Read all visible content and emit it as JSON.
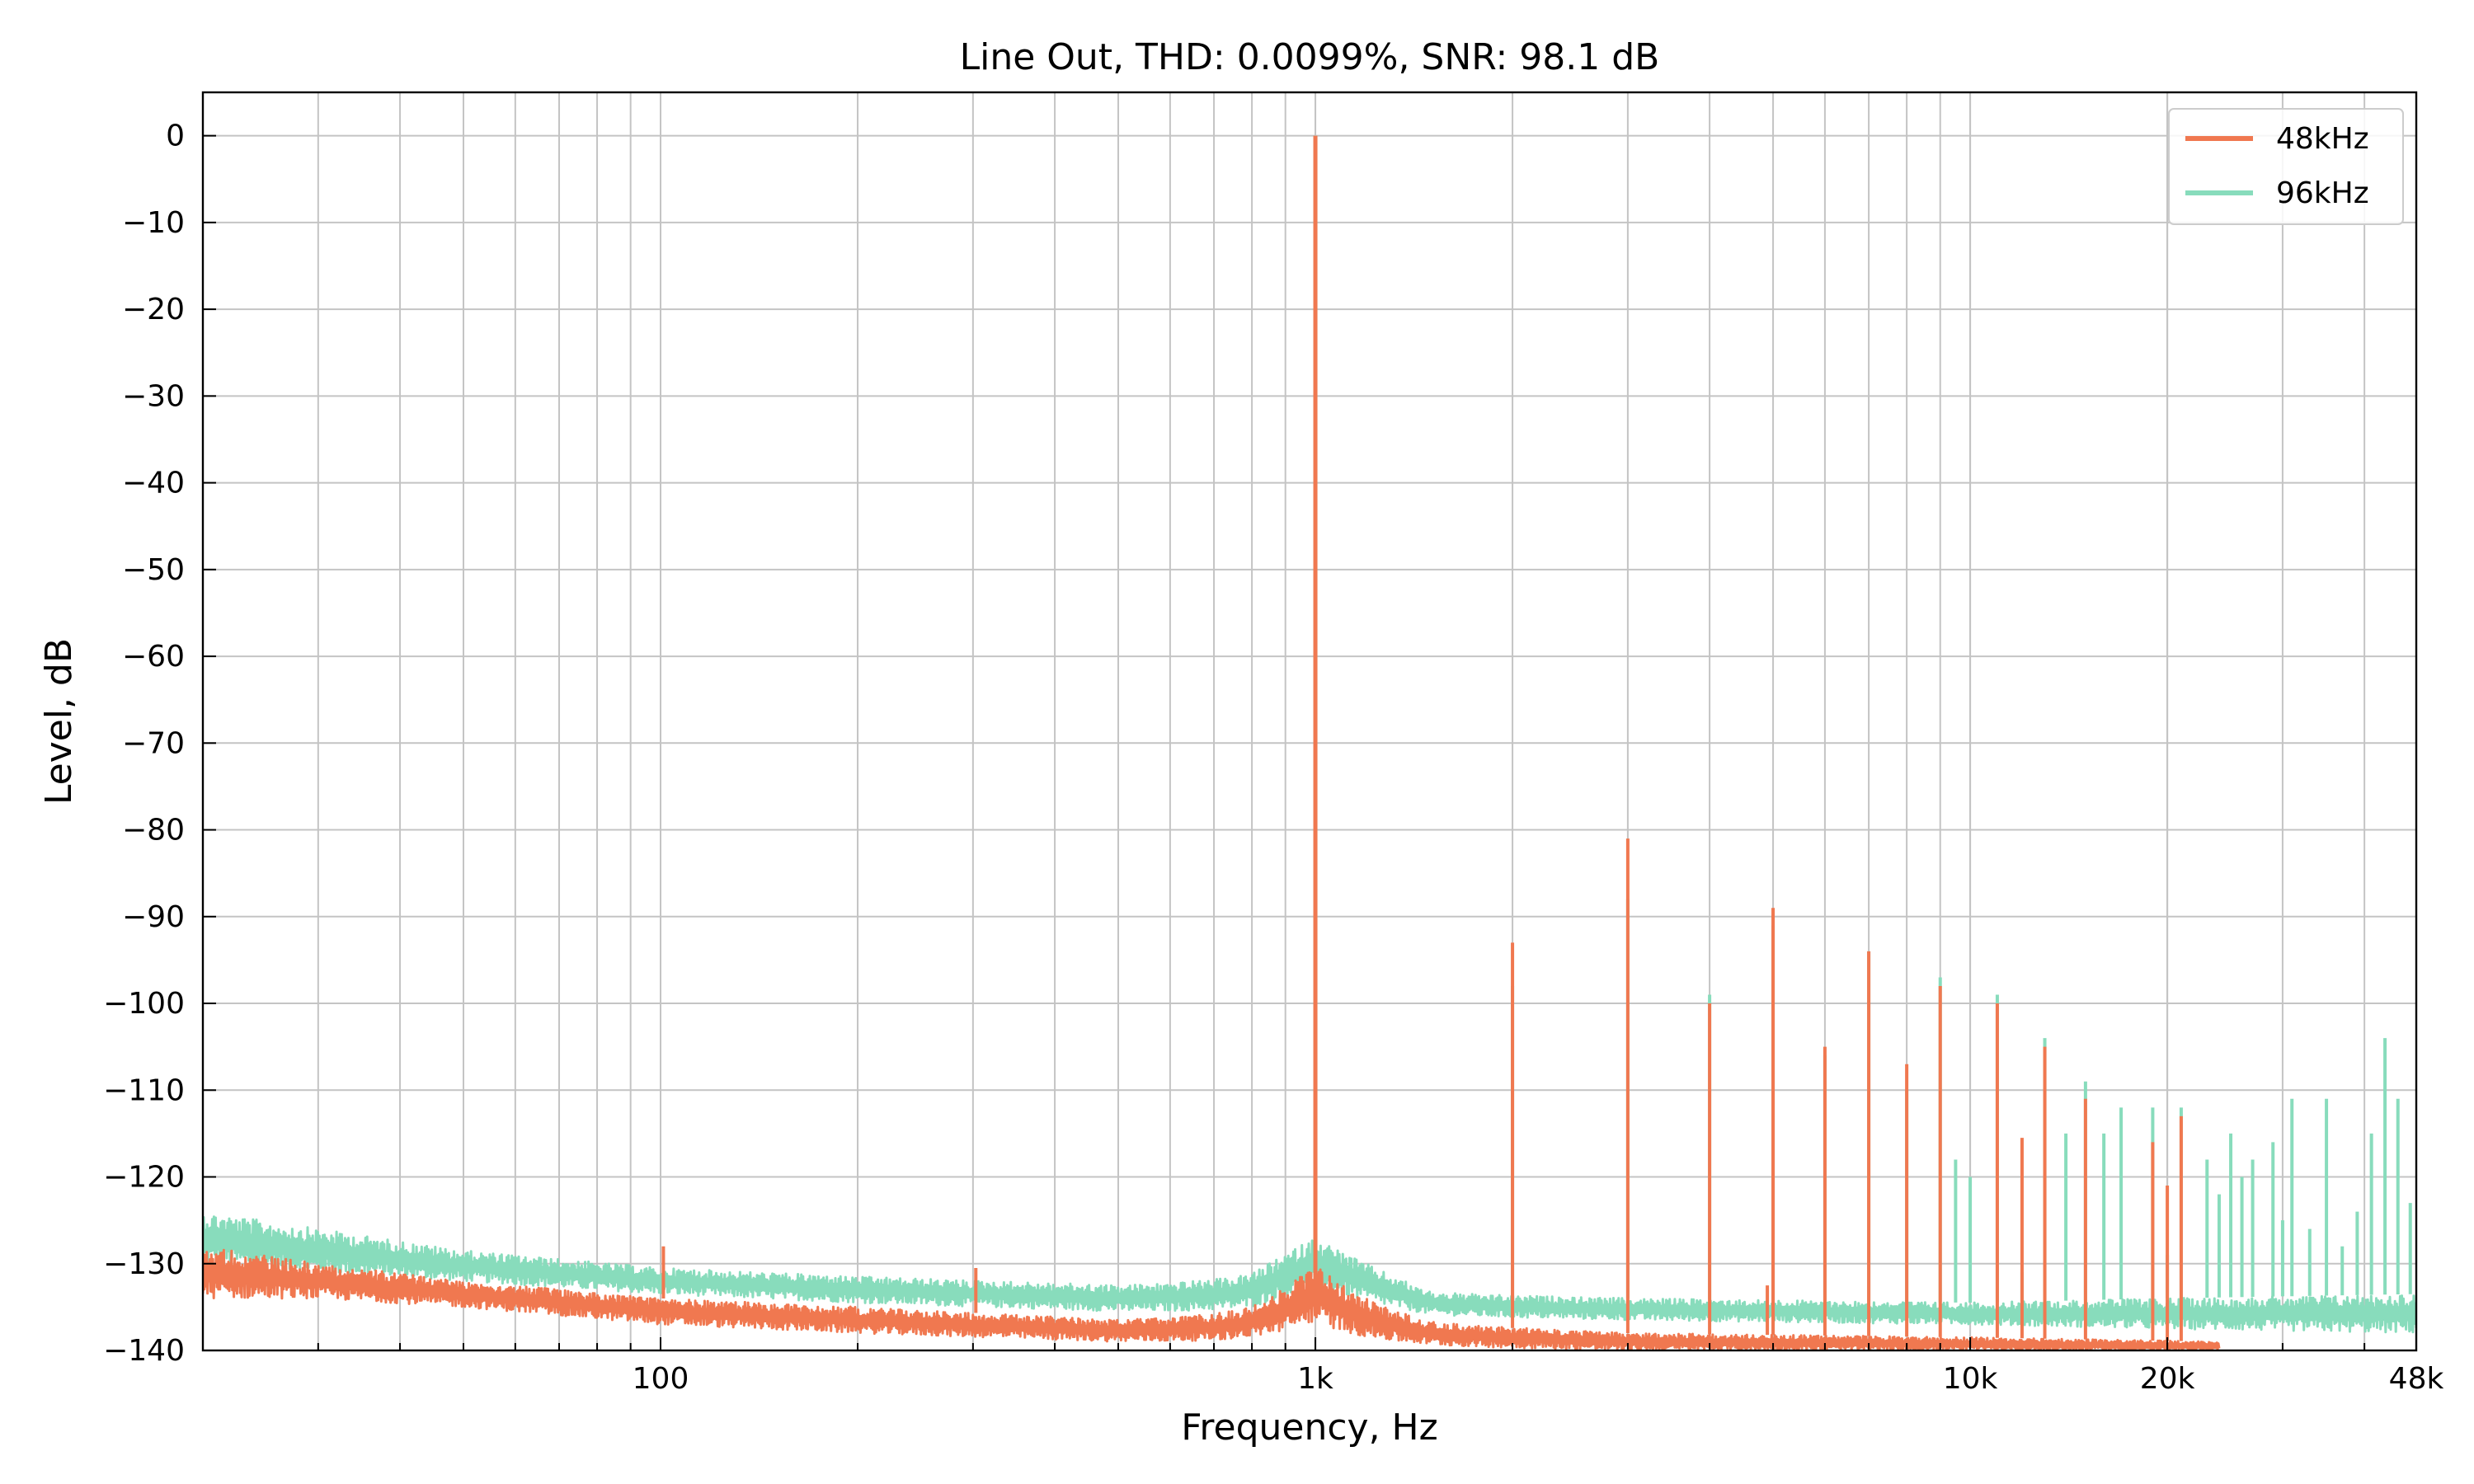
{
  "chart_data": {
    "type": "line",
    "title": "Line Out, THD: 0.0099%, SNR: 98.1 dB",
    "xlabel": "Frequency, Hz",
    "ylabel": "Level, dB",
    "xscale": "log",
    "xlim": [
      20,
      48000
    ],
    "ylim": [
      -140,
      5
    ],
    "grid": true,
    "legend_position": "top-right",
    "x_ticks": [
      {
        "value": 100,
        "label": "100"
      },
      {
        "value": 1000,
        "label": "1k"
      },
      {
        "value": 10000,
        "label": "10k"
      },
      {
        "value": 20000,
        "label": "20k"
      },
      {
        "value": 48000,
        "label": "48k"
      }
    ],
    "y_ticks": [
      {
        "value": 0,
        "label": "0"
      },
      {
        "value": -10,
        "label": "−10"
      },
      {
        "value": -20,
        "label": "−20"
      },
      {
        "value": -30,
        "label": "−30"
      },
      {
        "value": -40,
        "label": "−40"
      },
      {
        "value": -50,
        "label": "−50"
      },
      {
        "value": -60,
        "label": "−60"
      },
      {
        "value": -70,
        "label": "−70"
      },
      {
        "value": -80,
        "label": "−80"
      },
      {
        "value": -90,
        "label": "−90"
      },
      {
        "value": -100,
        "label": "−100"
      },
      {
        "value": -110,
        "label": "−110"
      },
      {
        "value": -120,
        "label": "−120"
      },
      {
        "value": -130,
        "label": "−130"
      },
      {
        "value": -140,
        "label": "−140"
      }
    ],
    "series": [
      {
        "name": "48kHz",
        "color": "#f07850",
        "noise_floor": {
          "x": [
            20,
            30,
            50,
            100,
            200,
            500,
            800,
            1000,
            1500,
            3000,
            10000,
            24000
          ],
          "lower": [
            -134,
            -134,
            -135,
            -137,
            -138,
            -139,
            -139,
            -139,
            -139.5,
            -140,
            -140,
            -140
          ],
          "upper": [
            -128,
            -130,
            -132,
            -134,
            -135,
            -136.5,
            -136,
            -134,
            -137,
            -138,
            -138.5,
            -139
          ]
        },
        "skirt": {
          "center": 1000,
          "peak_db": -130
        },
        "peaks": [
          {
            "x": 1000,
            "y": 0
          },
          {
            "x": 101,
            "y": -128
          },
          {
            "x": 303,
            "y": -130.5
          },
          {
            "x": 2000,
            "y": -93
          },
          {
            "x": 3000,
            "y": -81
          },
          {
            "x": 4000,
            "y": -100
          },
          {
            "x": 4900,
            "y": -132.5
          },
          {
            "x": 5000,
            "y": -89
          },
          {
            "x": 6000,
            "y": -105
          },
          {
            "x": 7000,
            "y": -94
          },
          {
            "x": 8000,
            "y": -107
          },
          {
            "x": 9000,
            "y": -98
          },
          {
            "x": 11000,
            "y": -100
          },
          {
            "x": 12000,
            "y": -115.5
          },
          {
            "x": 13000,
            "y": -105
          },
          {
            "x": 15000,
            "y": -111
          },
          {
            "x": 19000,
            "y": -116
          },
          {
            "x": 20000,
            "y": -121
          },
          {
            "x": 21000,
            "y": -113
          }
        ]
      },
      {
        "name": "96kHz",
        "color": "#88dcbc",
        "noise_floor": {
          "x": [
            20,
            30,
            50,
            100,
            200,
            500,
            800,
            1000,
            1500,
            3000,
            10000,
            20000,
            48000
          ],
          "lower": [
            -130,
            -131,
            -132,
            -133.5,
            -134.5,
            -135.5,
            -135.5,
            -134,
            -136,
            -136.5,
            -137,
            -137.5,
            -138
          ],
          "upper": [
            -124,
            -126,
            -128.5,
            -130.5,
            -131.5,
            -132.5,
            -132,
            -129,
            -133.5,
            -134,
            -134.5,
            -134,
            -133.5
          ]
        },
        "skirt": {
          "center": 1000,
          "peak_db": -127
        },
        "peaks": [
          {
            "x": 1000,
            "y": 0
          },
          {
            "x": 2000,
            "y": -98
          },
          {
            "x": 3000,
            "y": -88
          },
          {
            "x": 4000,
            "y": -99
          },
          {
            "x": 5000,
            "y": -91
          },
          {
            "x": 6000,
            "y": -106
          },
          {
            "x": 7000,
            "y": -94
          },
          {
            "x": 8000,
            "y": -110
          },
          {
            "x": 9000,
            "y": -97
          },
          {
            "x": 9500,
            "y": -118
          },
          {
            "x": 10000,
            "y": -120
          },
          {
            "x": 11000,
            "y": -99
          },
          {
            "x": 12000,
            "y": -131
          },
          {
            "x": 13000,
            "y": -104
          },
          {
            "x": 14000,
            "y": -115
          },
          {
            "x": 15000,
            "y": -109
          },
          {
            "x": 16000,
            "y": -115
          },
          {
            "x": 17000,
            "y": -112
          },
          {
            "x": 19000,
            "y": -112
          },
          {
            "x": 20000,
            "y": -129
          },
          {
            "x": 21000,
            "y": -112
          },
          {
            "x": 23000,
            "y": -118
          },
          {
            "x": 24000,
            "y": -122
          },
          {
            "x": 25000,
            "y": -115
          },
          {
            "x": 26000,
            "y": -120
          },
          {
            "x": 27000,
            "y": -118
          },
          {
            "x": 29000,
            "y": -116
          },
          {
            "x": 30000,
            "y": -125
          },
          {
            "x": 31000,
            "y": -111
          },
          {
            "x": 33000,
            "y": -126
          },
          {
            "x": 35000,
            "y": -111
          },
          {
            "x": 37000,
            "y": -128
          },
          {
            "x": 39000,
            "y": -124
          },
          {
            "x": 41000,
            "y": -115
          },
          {
            "x": 43000,
            "y": -104
          },
          {
            "x": 45000,
            "y": -111
          },
          {
            "x": 47000,
            "y": -123
          }
        ]
      }
    ]
  }
}
